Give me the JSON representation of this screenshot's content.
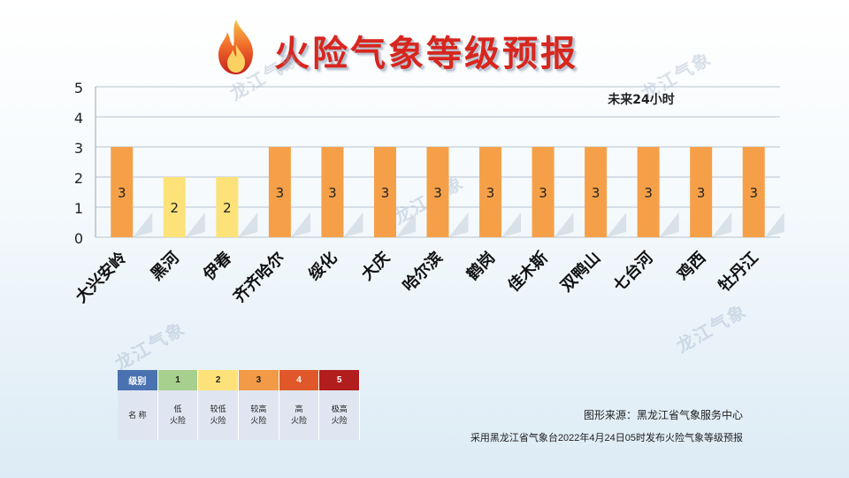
{
  "title": "火险气象等级预报",
  "watermark": "龙江气象",
  "chart_data": {
    "type": "bar",
    "title": "火险气象等级预报",
    "annotation": "未来24小时",
    "categories": [
      "大兴安岭",
      "黑河",
      "伊春",
      "齐齐哈尔",
      "绥化",
      "大庆",
      "哈尔滨",
      "鹤岗",
      "佳木斯",
      "双鸭山",
      "七台河",
      "鸡西",
      "牡丹江"
    ],
    "values": [
      3,
      2,
      2,
      3,
      3,
      3,
      3,
      3,
      3,
      3,
      3,
      3,
      3
    ],
    "ylim": [
      0,
      5
    ],
    "yticks": [
      0,
      1,
      2,
      3,
      4,
      5
    ],
    "grid": true,
    "colors": {
      "level2": "#fde27a",
      "level3": "#f5a048"
    },
    "data_labels": true
  },
  "legend": {
    "header": [
      "级别",
      "1",
      "2",
      "3",
      "4",
      "5"
    ],
    "header_colors": [
      "#4a72b0",
      "#a7cf8e",
      "#fde27a",
      "#f29a45",
      "#e0582a",
      "#b21d1d"
    ],
    "body": [
      "名 称",
      "低\n火险",
      "较低\n火险",
      "较高\n火险",
      "高\n火险",
      "极高\n火险"
    ]
  },
  "source": "图形来源：黑龙江省气象服务中心",
  "note": "采用黑龙江省气象台2022年4月24日05时发布火险气象等级预报"
}
